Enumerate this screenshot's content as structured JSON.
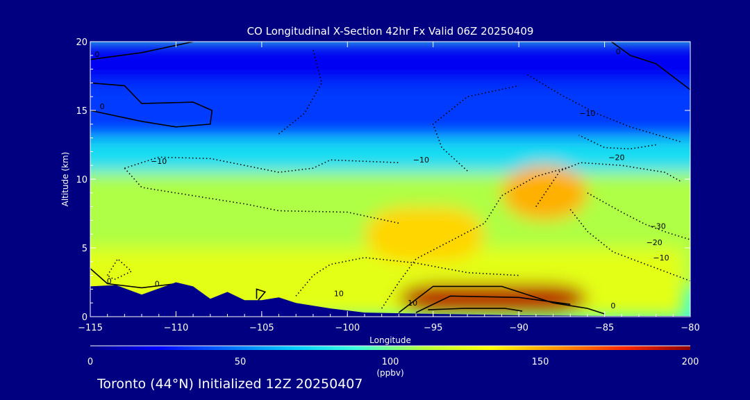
{
  "chart_data": {
    "type": "heatmap",
    "title": "CO Longitudinal X-Section 42hr  Fx Valid 06Z 20250409",
    "xlabel": "Longitude",
    "ylabel": "Altitude (km)",
    "xlim": [
      -115,
      -80
    ],
    "ylim": [
      0,
      20
    ],
    "x_ticks": [
      "−115",
      "−110",
      "−105",
      "−100",
      "−95",
      "−90",
      "−85",
      "−80"
    ],
    "y_ticks": [
      "0",
      "5",
      "10",
      "15",
      "20"
    ],
    "colorbar": {
      "min": 0,
      "max": 200,
      "ticks": [
        "0",
        "50",
        "100",
        "150",
        "200"
      ],
      "unit": "(ppbv)",
      "colors": [
        "#00008a",
        "#0000ff",
        "#0066ff",
        "#00c8ff",
        "#3cffdc",
        "#b4ff3c",
        "#ffff00",
        "#ff9600",
        "#ff2800",
        "#8b0000"
      ]
    },
    "field": {
      "background": "#3cffdc",
      "regions": [
        {
          "name": "stratosphere",
          "level": 20,
          "x": [
            -115,
            -80
          ],
          "y": [
            17,
            20
          ]
        },
        {
          "name": "upper-blue",
          "level": 35,
          "x": [
            -115,
            -80
          ],
          "y": [
            13,
            17
          ]
        },
        {
          "name": "cyan-band",
          "level": 75,
          "x": [
            -115,
            -80
          ],
          "y": [
            10.5,
            13
          ]
        },
        {
          "name": "mid-green",
          "level": 110,
          "x": [
            -115,
            -80
          ],
          "y": [
            2,
            10.5
          ]
        },
        {
          "name": "low-yellow",
          "level": 125,
          "x": [
            -115,
            -82
          ],
          "y": [
            0,
            5
          ]
        },
        {
          "name": "orange-plume-1",
          "level": 142,
          "x": [
            -99,
            -92
          ],
          "y": [
            4,
            8
          ]
        },
        {
          "name": "orange-plume-2",
          "level": 150,
          "x": [
            -91,
            -86
          ],
          "y": [
            7,
            11
          ]
        },
        {
          "name": "red-surface-plume",
          "level": 192,
          "x": [
            -97,
            -86
          ],
          "y": [
            0.3,
            2.4
          ]
        }
      ]
    },
    "contour_labels": [
      {
        "text": "0",
        "x": -114.6,
        "y": 18.9
      },
      {
        "text": "0",
        "x": -114.3,
        "y": 15.1
      },
      {
        "text": "0",
        "x": -84.2,
        "y": 19.1
      },
      {
        "text": "−10",
        "x": -86,
        "y": 14.6
      },
      {
        "text": "−10",
        "x": -111,
        "y": 11.1
      },
      {
        "text": "−10",
        "x": -95.7,
        "y": 11.2
      },
      {
        "text": "−20",
        "x": -84.3,
        "y": 11.4
      },
      {
        "text": "−30",
        "x": -81.9,
        "y": 6.4
      },
      {
        "text": "−20",
        "x": -82.1,
        "y": 5.2
      },
      {
        "text": "−10",
        "x": -81.7,
        "y": 4.1
      },
      {
        "text": "0",
        "x": -113.9,
        "y": 2.4
      },
      {
        "text": "0",
        "x": -111.1,
        "y": 2.2
      },
      {
        "text": "10",
        "x": -100.5,
        "y": 1.5
      },
      {
        "text": "10",
        "x": -96.2,
        "y": 0.8
      },
      {
        "text": "0",
        "x": -84.5,
        "y": 0.6
      }
    ],
    "terrain": [
      [
        -115,
        2.2
      ],
      [
        -113.5,
        2.3
      ],
      [
        -112,
        1.6
      ],
      [
        -110,
        2.5
      ],
      [
        -109,
        2.2
      ],
      [
        -108,
        1.3
      ],
      [
        -107,
        1.8
      ],
      [
        -106,
        1.2
      ],
      [
        -105,
        1.2
      ],
      [
        -104,
        1.4
      ],
      [
        -103,
        1.0
      ],
      [
        -101,
        0.6
      ],
      [
        -99,
        0.3
      ],
      [
        -95,
        0.2
      ],
      [
        -90,
        0.1
      ],
      [
        -85,
        0.05
      ],
      [
        -80,
        0.05
      ]
    ]
  },
  "footer": "Toronto (44°N) Initialized 12Z 20250407"
}
